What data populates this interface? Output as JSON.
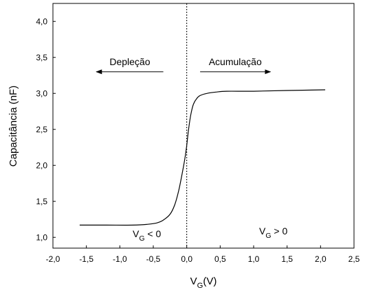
{
  "chart_data": {
    "type": "line",
    "xlabel": {
      "main": "V",
      "sub": "G",
      "rest": "(V)"
    },
    "ylabel": "Capacitância (nF)",
    "xlim": [
      -2.0,
      2.5
    ],
    "ylim": [
      0.85,
      4.25
    ],
    "x_ticks": [
      -2.0,
      -1.5,
      -1.0,
      -0.5,
      0.0,
      0.5,
      1.0,
      1.5,
      2.0,
      2.5
    ],
    "x_tick_labels": [
      "-2,0",
      "-1,5",
      "-1,0",
      "-0,5",
      "0,0",
      "0,5",
      "1,0",
      "1,5",
      "2,0",
      "2,5"
    ],
    "y_ticks": [
      1.0,
      1.5,
      2.0,
      2.5,
      3.0,
      3.5,
      4.0
    ],
    "y_tick_labels": [
      "1,0",
      "1,5",
      "2,0",
      "2,5",
      "3,0",
      "3,5",
      "4,0"
    ],
    "grid": false,
    "series": [
      {
        "color": "#000000",
        "x": [
          -1.6,
          -1.2,
          -0.8,
          -0.6,
          -0.45,
          -0.35,
          -0.25,
          -0.18,
          -0.12,
          -0.07,
          -0.03,
          0.0,
          0.03,
          0.06,
          0.1,
          0.15,
          0.2,
          0.3,
          0.45,
          0.6,
          1.0,
          1.5,
          2.07
        ],
        "y": [
          1.17,
          1.17,
          1.17,
          1.18,
          1.2,
          1.24,
          1.32,
          1.45,
          1.65,
          1.88,
          2.08,
          2.28,
          2.52,
          2.7,
          2.85,
          2.93,
          2.97,
          3.0,
          3.02,
          3.03,
          3.03,
          3.04,
          3.05
        ]
      }
    ],
    "vertical_line": {
      "x": 0.0,
      "style": "dotted"
    },
    "annotations": {
      "depletion": {
        "text": "Depleção",
        "arrow": "left",
        "x_from": -0.35,
        "x_to": -1.35,
        "y": 3.3
      },
      "accumulation": {
        "text": "Acumulação",
        "arrow": "right",
        "x_from": 0.2,
        "x_to": 1.25,
        "y": 3.3
      },
      "vg_negative": {
        "main": "V",
        "sub": "G",
        "rest": " < 0"
      },
      "vg_positive": {
        "main": "V",
        "sub": "G",
        "rest": " > 0"
      }
    }
  }
}
